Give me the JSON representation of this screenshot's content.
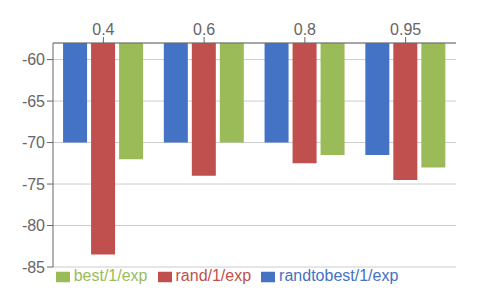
{
  "chart_data": {
    "type": "bar",
    "categories": [
      "0.4",
      "0.6",
      "0.8",
      "0.95"
    ],
    "series": [
      {
        "name": "randtobest/1/exp",
        "color": "#4472C4",
        "values": [
          -70.0,
          -70.0,
          -70.0,
          -71.5
        ]
      },
      {
        "name": "rand/1/exp",
        "color": "#C0504D",
        "values": [
          -83.5,
          -74.0,
          -72.5,
          -74.5
        ]
      },
      {
        "name": "best/1/exp",
        "color": "#9BBB59",
        "values": [
          -72.0,
          -70.0,
          -71.5,
          -73.0
        ]
      }
    ],
    "ylim": [
      -85,
      -58
    ],
    "yticks": [
      -85,
      -80,
      -75,
      -70,
      -65,
      -60
    ],
    "grid": true,
    "legend": "bottom"
  }
}
